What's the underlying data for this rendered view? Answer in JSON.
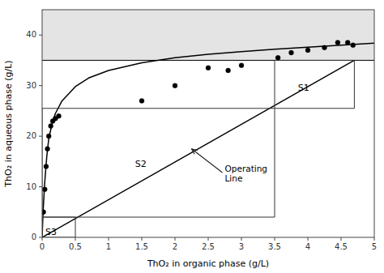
{
  "chart_data": {
    "type": "line",
    "xlabel": "ThO₂ in organic phase (g/L)",
    "ylabel": "ThO₂ in aqueous phase (g/L)",
    "xlim": [
      0,
      5
    ],
    "ylim": [
      0,
      45
    ],
    "xticks": [
      0,
      0.5,
      1,
      1.5,
      2,
      2.5,
      3,
      3.5,
      4,
      4.5,
      5
    ],
    "yticks": [
      0,
      10,
      20,
      30,
      40
    ],
    "grid": false,
    "series": [
      {
        "type": "scatter",
        "color": "black",
        "marker": "circle",
        "x": [
          0.02,
          0.04,
          0.06,
          0.08,
          0.1,
          0.13,
          0.16,
          0.2,
          0.25,
          1.5,
          2.0,
          2.5,
          2.8,
          3.0,
          3.55,
          3.75,
          4.0,
          4.25,
          4.45,
          4.6,
          4.68
        ],
        "values": [
          5.0,
          9.5,
          14.0,
          17.5,
          20.0,
          22.0,
          23.0,
          23.5,
          24.0,
          27.0,
          30.0,
          33.5,
          33.0,
          34.0,
          35.5,
          36.5,
          37.0,
          37.5,
          38.5,
          38.5,
          38.0
        ]
      },
      {
        "type": "line",
        "color": "black",
        "x": [
          0,
          0.005,
          0.01,
          0.02,
          0.04,
          0.07,
          0.1,
          0.15,
          0.2,
          0.3,
          0.5,
          0.7,
          1.0,
          1.5,
          2.0,
          2.5,
          3.0,
          3.5,
          4.0,
          4.5,
          5.0
        ],
        "values": [
          0,
          1.8,
          3.5,
          6.5,
          11.0,
          16.0,
          19.5,
          22.5,
          24.5,
          27.0,
          29.8,
          31.5,
          33.0,
          34.5,
          35.5,
          36.2,
          36.7,
          37.2,
          37.6,
          38.0,
          38.4
        ]
      },
      {
        "type": "line",
        "color": "black",
        "x": [
          0,
          4.7
        ],
        "values": [
          0,
          35.0
        ]
      },
      {
        "type": "line",
        "color": "black",
        "x": [
          0,
          5
        ],
        "values": [
          35.0,
          35.0
        ]
      }
    ],
    "stages": [
      {
        "label": "S3",
        "x0": 0.0,
        "x1": 0.5,
        "y0": 0.0,
        "y1": 4.0,
        "label_x": 0.05,
        "label_y": 0.5
      },
      {
        "label": "S2",
        "x0": 0.0,
        "x1": 3.5,
        "y0": 4.0,
        "y1": 25.5,
        "label_x": 1.4,
        "label_y": 14.0
      },
      {
        "label": "S1",
        "x0": 3.5,
        "x1": 4.7,
        "y0": 25.5,
        "y1": 35.0,
        "label_x": 3.85,
        "label_y": 29.0
      }
    ],
    "annotation": {
      "text": "Operating\nLine",
      "x": 2.75,
      "y": 12.5,
      "arrow_x": 2.25,
      "arrow_y": 17.5
    }
  }
}
